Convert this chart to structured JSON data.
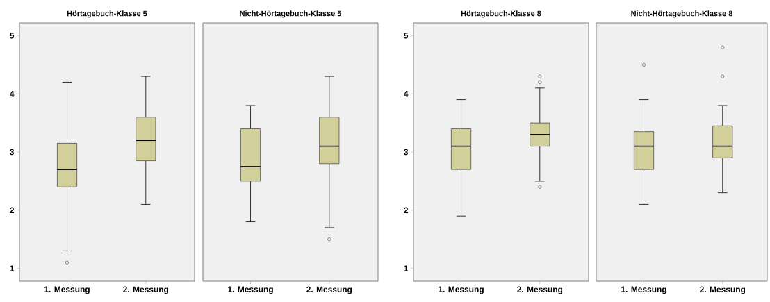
{
  "chart_data": [
    {
      "type": "box",
      "title": "Hörtagebuch-Klasse 5",
      "categories": [
        "1. Messung",
        "2. Messung"
      ],
      "color": "#d3cf9a",
      "marker": "circle",
      "ylim": [
        0.78,
        5.22
      ],
      "yticks": [
        1,
        2,
        3,
        4,
        5
      ],
      "boxes": [
        {
          "low": 1.3,
          "q1": 2.4,
          "median": 2.7,
          "q3": 3.15,
          "high": 4.2,
          "outliers": [
            1.1
          ]
        },
        {
          "low": 2.1,
          "q1": 2.85,
          "median": 3.2,
          "q3": 3.6,
          "high": 4.3
        }
      ]
    },
    {
      "type": "box",
      "title": "Nicht-Hörtagebuch-Klasse 5",
      "categories": [
        "1. Messung",
        "2. Messung"
      ],
      "color": "#d3cf9a",
      "marker": "circle",
      "ylim": [
        0.78,
        5.22
      ],
      "yticks": [
        1,
        2,
        3,
        4,
        5
      ],
      "tick_labels": "x",
      "boxes": [
        {
          "low": 1.8,
          "q1": 2.5,
          "median": 2.75,
          "q3": 3.4,
          "high": 3.8
        },
        {
          "low": 1.7,
          "q1": 2.8,
          "median": 3.1,
          "q3": 3.6,
          "high": 4.3,
          "outliers": [
            1.5
          ]
        }
      ]
    },
    {
      "type": "box",
      "title": "Hörtagebuch-Klasse 8",
      "categories": [
        "1. Messung",
        "2. Messung"
      ],
      "color": "#d3cf9a",
      "marker": "circle",
      "ylim": [
        0.78,
        5.22
      ],
      "yticks": [
        1,
        2,
        3,
        4,
        5
      ],
      "boxes": [
        {
          "low": 1.9,
          "q1": 2.7,
          "median": 3.1,
          "q3": 3.4,
          "high": 3.9
        },
        {
          "low": 2.5,
          "q1": 3.1,
          "median": 3.3,
          "q3": 3.5,
          "high": 4.1,
          "outliers": [
            4.3,
            4.2,
            2.4
          ]
        }
      ]
    },
    {
      "type": "box",
      "title": "Nicht-Hörtagebuch-Klasse 8",
      "categories": [
        "1. Messung",
        "2. Messung"
      ],
      "color": "#d3cf9a",
      "marker": "circle",
      "ylim": [
        0.78,
        5.22
      ],
      "yticks": [
        1,
        2,
        3,
        4,
        5
      ],
      "tick_labels": "x",
      "boxes": [
        {
          "low": 2.1,
          "q1": 2.7,
          "median": 3.1,
          "q3": 3.35,
          "high": 3.9,
          "outliers": [
            4.5
          ]
        },
        {
          "low": 2.3,
          "q1": 2.9,
          "median": 3.1,
          "q3": 3.45,
          "high": 3.8,
          "outliers": [
            4.8,
            4.3
          ]
        }
      ]
    }
  ]
}
